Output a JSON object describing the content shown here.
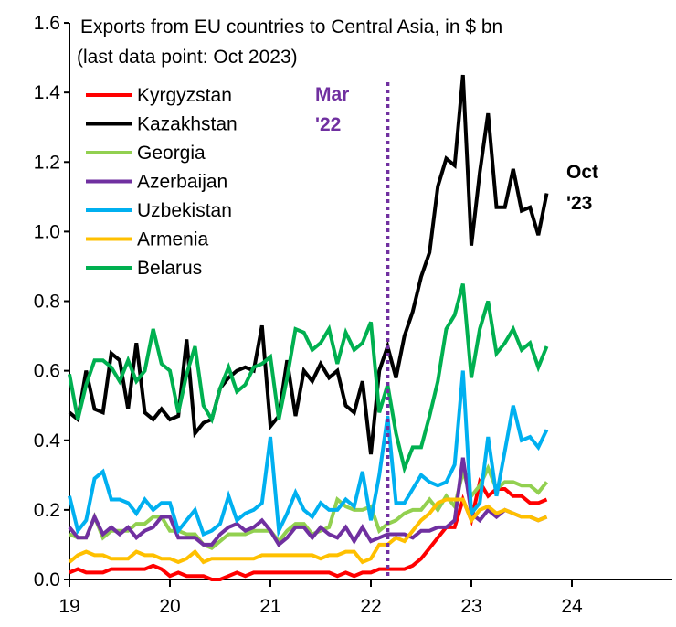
{
  "chart_data": {
    "type": "line",
    "title": "Exports from EU countries to Central Asia, in $ bn",
    "subtitle": "(last data point: Oct 2023)",
    "xlabel": "",
    "ylabel": "",
    "x_start": "2019-01",
    "x_end": "2023-10",
    "frequency": "monthly",
    "xlim": [
      19,
      25
    ],
    "ylim": [
      0,
      1.6
    ],
    "x_ticks": [
      "19",
      "20",
      "21",
      "22",
      "23",
      "24"
    ],
    "y_ticks": [
      "0.0",
      "0.2",
      "0.4",
      "0.6",
      "0.8",
      "1.0",
      "1.2",
      "1.4",
      "1.6"
    ],
    "grid": false,
    "legend_position": "top-left",
    "annotations": [
      {
        "text_lines": [
          "Mar",
          "'22"
        ],
        "x": "2022-03",
        "color": "#7030A0",
        "style": "dotted vertical line"
      },
      {
        "text_lines": [
          "Oct",
          "'23"
        ],
        "x": "2023-10",
        "color": "#000000"
      }
    ],
    "series": [
      {
        "name": "Kyrgyzstan",
        "color": "#FF0000",
        "values": [
          0.02,
          0.03,
          0.02,
          0.02,
          0.02,
          0.03,
          0.03,
          0.03,
          0.03,
          0.03,
          0.04,
          0.03,
          0.01,
          0.02,
          0.01,
          0.01,
          0.01,
          0.0,
          0.0,
          0.01,
          0.02,
          0.01,
          0.02,
          0.02,
          0.02,
          0.02,
          0.02,
          0.02,
          0.02,
          0.02,
          0.02,
          0.02,
          0.01,
          0.02,
          0.01,
          0.02,
          0.02,
          0.03,
          0.03,
          0.03,
          0.03,
          0.04,
          0.06,
          0.09,
          0.12,
          0.15,
          0.15,
          0.23,
          0.17,
          0.28,
          0.24,
          0.26,
          0.26,
          0.24,
          0.24,
          0.22,
          0.22,
          0.23
        ]
      },
      {
        "name": "Kazakhstan",
        "color": "#000000",
        "values": [
          0.48,
          0.46,
          0.6,
          0.49,
          0.48,
          0.65,
          0.63,
          0.49,
          0.68,
          0.48,
          0.46,
          0.49,
          0.46,
          0.47,
          0.69,
          0.42,
          0.45,
          0.46,
          0.55,
          0.58,
          0.6,
          0.61,
          0.6,
          0.73,
          0.44,
          0.47,
          0.63,
          0.47,
          0.6,
          0.57,
          0.62,
          0.58,
          0.6,
          0.5,
          0.48,
          0.57,
          0.36,
          0.6,
          0.67,
          0.58,
          0.7,
          0.77,
          0.87,
          0.94,
          1.13,
          1.21,
          1.19,
          1.45,
          0.96,
          1.17,
          1.34,
          1.07,
          1.07,
          1.18,
          1.06,
          1.07,
          0.99,
          1.11
        ]
      },
      {
        "name": "Georgia",
        "color": "#92D050",
        "values": [
          0.13,
          0.12,
          0.12,
          0.18,
          0.12,
          0.14,
          0.14,
          0.14,
          0.16,
          0.16,
          0.18,
          0.18,
          0.14,
          0.14,
          0.13,
          0.13,
          0.1,
          0.09,
          0.11,
          0.13,
          0.13,
          0.13,
          0.14,
          0.14,
          0.14,
          0.11,
          0.14,
          0.16,
          0.16,
          0.13,
          0.14,
          0.15,
          0.23,
          0.21,
          0.2,
          0.2,
          0.21,
          0.14,
          0.16,
          0.17,
          0.19,
          0.2,
          0.2,
          0.23,
          0.2,
          0.24,
          0.21,
          0.31,
          0.24,
          0.27,
          0.32,
          0.26,
          0.28,
          0.28,
          0.27,
          0.27,
          0.25,
          0.28
        ]
      },
      {
        "name": "Azerbaijan",
        "color": "#7030A0",
        "values": [
          0.15,
          0.12,
          0.12,
          0.18,
          0.13,
          0.15,
          0.13,
          0.15,
          0.12,
          0.14,
          0.15,
          0.18,
          0.18,
          0.12,
          0.12,
          0.12,
          0.1,
          0.1,
          0.13,
          0.15,
          0.16,
          0.14,
          0.15,
          0.17,
          0.14,
          0.1,
          0.12,
          0.15,
          0.15,
          0.12,
          0.15,
          0.13,
          0.12,
          0.15,
          0.11,
          0.15,
          0.11,
          0.12,
          0.13,
          0.13,
          0.13,
          0.12,
          0.14,
          0.14,
          0.15,
          0.15,
          0.17,
          0.35,
          0.19,
          0.17,
          0.2,
          0.18,
          0.2,
          0.19,
          0.18,
          0.18,
          0.17,
          0.18
        ]
      },
      {
        "name": "Uzbekistan",
        "color": "#00B0F0",
        "values": [
          0.24,
          0.14,
          0.17,
          0.29,
          0.31,
          0.23,
          0.23,
          0.22,
          0.19,
          0.23,
          0.2,
          0.22,
          0.22,
          0.14,
          0.17,
          0.2,
          0.13,
          0.14,
          0.16,
          0.24,
          0.17,
          0.19,
          0.2,
          0.22,
          0.41,
          0.14,
          0.19,
          0.25,
          0.2,
          0.18,
          0.22,
          0.2,
          0.2,
          0.23,
          0.21,
          0.31,
          0.17,
          0.3,
          0.47,
          0.22,
          0.22,
          0.26,
          0.3,
          0.28,
          0.27,
          0.28,
          0.33,
          0.6,
          0.19,
          0.22,
          0.41,
          0.24,
          0.37,
          0.5,
          0.4,
          0.41,
          0.38,
          0.43
        ]
      },
      {
        "name": "Armenia",
        "color": "#FFC000",
        "values": [
          0.05,
          0.07,
          0.08,
          0.07,
          0.07,
          0.06,
          0.06,
          0.06,
          0.08,
          0.07,
          0.07,
          0.06,
          0.06,
          0.05,
          0.06,
          0.08,
          0.05,
          0.06,
          0.06,
          0.06,
          0.06,
          0.06,
          0.06,
          0.07,
          0.07,
          0.07,
          0.07,
          0.07,
          0.07,
          0.07,
          0.06,
          0.07,
          0.07,
          0.08,
          0.08,
          0.05,
          0.06,
          0.1,
          0.1,
          0.12,
          0.11,
          0.14,
          0.17,
          0.19,
          0.22,
          0.23,
          0.23,
          0.23,
          0.17,
          0.2,
          0.21,
          0.19,
          0.2,
          0.19,
          0.18,
          0.18,
          0.17,
          0.18
        ]
      },
      {
        "name": "Belarus",
        "color": "#00B050",
        "values": [
          0.59,
          0.46,
          0.56,
          0.63,
          0.63,
          0.61,
          0.57,
          0.63,
          0.57,
          0.6,
          0.72,
          0.62,
          0.6,
          0.48,
          0.59,
          0.67,
          0.5,
          0.46,
          0.55,
          0.61,
          0.54,
          0.56,
          0.61,
          0.62,
          0.64,
          0.46,
          0.58,
          0.72,
          0.71,
          0.66,
          0.68,
          0.72,
          0.62,
          0.71,
          0.66,
          0.68,
          0.74,
          0.48,
          0.56,
          0.42,
          0.32,
          0.38,
          0.38,
          0.47,
          0.57,
          0.72,
          0.76,
          0.85,
          0.58,
          0.72,
          0.8,
          0.65,
          0.68,
          0.72,
          0.66,
          0.68,
          0.61,
          0.67
        ]
      }
    ]
  }
}
